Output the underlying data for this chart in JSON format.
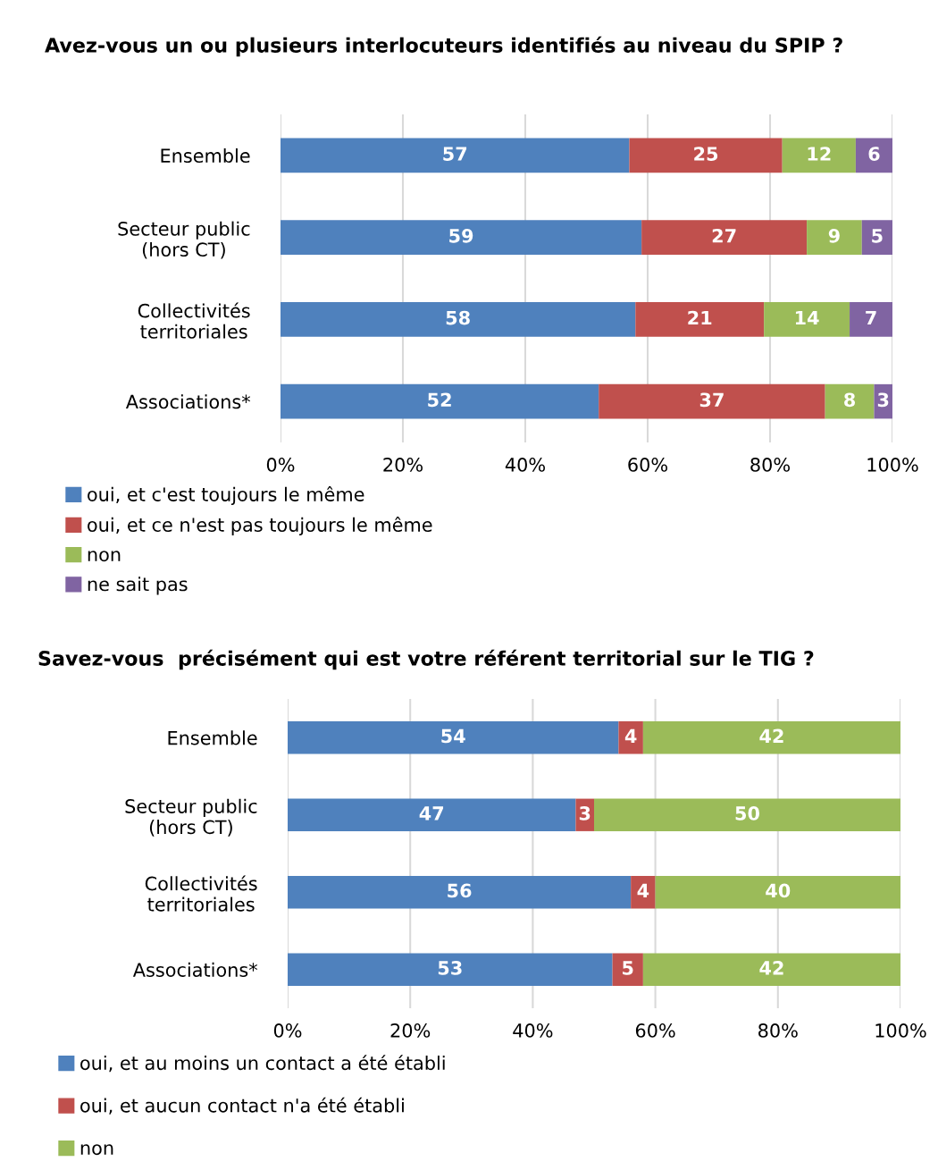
{
  "chart_data": [
    {
      "type": "bar",
      "orientation": "horizontal",
      "stacked": true,
      "title": "Avez-vous un ou plusieurs interlocuteurs identifiés au niveau du SPIP ?",
      "categories": [
        "Ensemble",
        "Secteur public\n(hors CT)",
        "Collectivités\nterritoriales",
        "Associations*"
      ],
      "series": [
        {
          "name": "oui, et c'est toujours le même",
          "color": "#4f81bd",
          "values": [
            57,
            59,
            58,
            52
          ]
        },
        {
          "name": "oui, et ce n'est pas toujours le même",
          "color": "#c0504d",
          "values": [
            25,
            27,
            21,
            37
          ]
        },
        {
          "name": "non",
          "color": "#9bbb59",
          "values": [
            12,
            9,
            14,
            8
          ]
        },
        {
          "name": "ne sait pas",
          "color": "#8064a2",
          "values": [
            6,
            5,
            7,
            3
          ]
        }
      ],
      "xlim": [
        0,
        100
      ],
      "xticks": [
        {
          "value": 0,
          "label": "0%"
        },
        {
          "value": 20,
          "label": "20%"
        },
        {
          "value": 40,
          "label": "40%"
        },
        {
          "value": 60,
          "label": "60%"
        },
        {
          "value": 80,
          "label": "80%"
        },
        {
          "value": 100,
          "label": "100%"
        }
      ],
      "grid": "x",
      "legend": "bottom",
      "data_labels": true
    },
    {
      "type": "bar",
      "orientation": "horizontal",
      "stacked": true,
      "title": "Savez-vous  précisément qui est votre référent territorial sur le TIG ?",
      "categories": [
        "Ensemble",
        "Secteur public\n(hors CT)",
        "Collectivités\nterritoriales",
        "Associations*"
      ],
      "series": [
        {
          "name": "oui, et au moins un contact a été établi",
          "color": "#4f81bd",
          "values": [
            54,
            47,
            56,
            53
          ]
        },
        {
          "name": "oui, et aucun contact n'a été établi",
          "color": "#c0504d",
          "values": [
            4,
            3,
            4,
            5
          ]
        },
        {
          "name": "non",
          "color": "#9bbb59",
          "values": [
            42,
            50,
            40,
            42
          ]
        }
      ],
      "xlim": [
        0,
        100
      ],
      "xticks": [
        {
          "value": 0,
          "label": "0%"
        },
        {
          "value": 20,
          "label": "20%"
        },
        {
          "value": 40,
          "label": "40%"
        },
        {
          "value": 60,
          "label": "60%"
        },
        {
          "value": 80,
          "label": "80%"
        },
        {
          "value": 100,
          "label": "100%"
        }
      ],
      "grid": "x",
      "legend": "bottom",
      "data_labels": true
    }
  ]
}
